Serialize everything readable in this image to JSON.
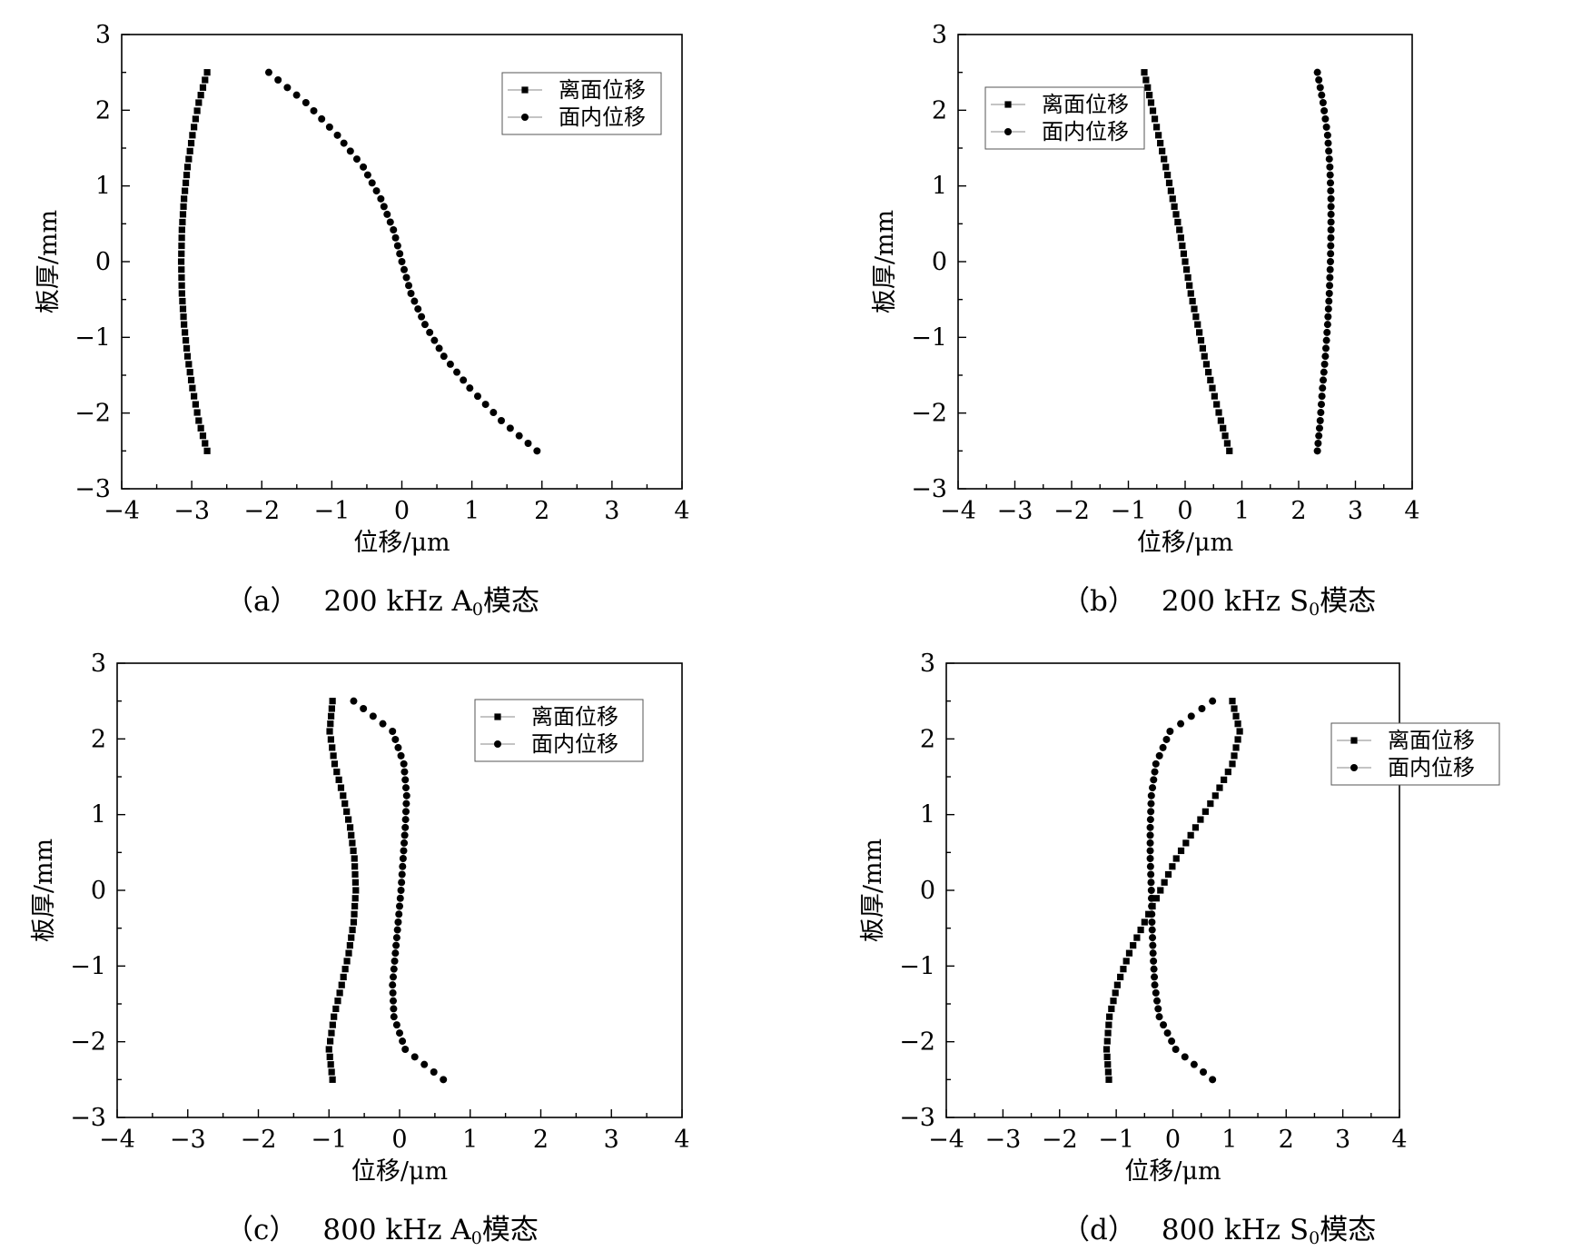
{
  "chart_data": [
    {
      "type": "scatter",
      "caption": {
        "label": "（a）",
        "text_before": "200 kHz A",
        "subscript": "0",
        "text_after": "模态"
      },
      "xlabel": "位移/μm",
      "ylabel": "板厚/mm",
      "xlim": [
        -4,
        4
      ],
      "ylim": [
        -3,
        3
      ],
      "xticks": [
        "−4",
        "−3",
        "−2",
        "−1",
        "0",
        "1",
        "2",
        "3",
        "4"
      ],
      "yticks": [
        "−3",
        "−2",
        "−1",
        "0",
        "1",
        "2",
        "3"
      ],
      "legend_position": "top-right",
      "series": [
        {
          "name": "离面位移",
          "marker": "square",
          "x": [
            -2.78,
            -2.9,
            -2.99,
            -3.06,
            -3.11,
            -3.14,
            -3.15,
            -3.14,
            -3.11,
            -3.06,
            -2.99,
            -2.9,
            -2.78
          ],
          "y": [
            2.5,
            2.1,
            1.67,
            1.25,
            0.83,
            0.42,
            0,
            -0.42,
            -0.83,
            -1.25,
            -1.67,
            -2.1,
            -2.5
          ]
        },
        {
          "name": "面内位移",
          "marker": "circle",
          "x": [
            -1.9,
            -1.37,
            -0.92,
            -0.55,
            -0.3,
            -0.12,
            0,
            0.13,
            0.33,
            0.6,
            0.97,
            1.42,
            1.93
          ],
          "y": [
            2.5,
            2.1,
            1.67,
            1.25,
            0.83,
            0.42,
            0,
            -0.42,
            -0.83,
            -1.25,
            -1.67,
            -2.1,
            -2.5
          ]
        }
      ]
    },
    {
      "type": "scatter",
      "caption": {
        "label": "（b）",
        "text_before": "200 kHz S",
        "subscript": "0",
        "text_after": "模态"
      },
      "xlabel": "位移/μm",
      "ylabel": "板厚/mm",
      "xlim": [
        -4,
        4
      ],
      "ylim": [
        -3,
        3
      ],
      "xticks": [
        "−4",
        "−3",
        "−2",
        "−1",
        "0",
        "1",
        "2",
        "3",
        "4"
      ],
      "yticks": [
        "−3",
        "−2",
        "−1",
        "0",
        "1",
        "2",
        "3"
      ],
      "legend_position": "top-left",
      "series": [
        {
          "name": "离面位移",
          "marker": "square",
          "x": [
            -0.72,
            -0.6,
            -0.47,
            -0.34,
            -0.22,
            -0.1,
            0,
            0.1,
            0.22,
            0.34,
            0.48,
            0.63,
            0.78
          ],
          "y": [
            2.5,
            2.1,
            1.67,
            1.25,
            0.83,
            0.42,
            0,
            -0.42,
            -0.83,
            -1.25,
            -1.67,
            -2.1,
            -2.5
          ]
        },
        {
          "name": "面内位移",
          "marker": "circle",
          "x": [
            2.33,
            2.43,
            2.51,
            2.55,
            2.57,
            2.57,
            2.56,
            2.54,
            2.51,
            2.47,
            2.42,
            2.38,
            2.33
          ],
          "y": [
            2.5,
            2.1,
            1.67,
            1.25,
            0.83,
            0.42,
            0,
            -0.42,
            -0.83,
            -1.25,
            -1.67,
            -2.1,
            -2.5
          ]
        }
      ]
    },
    {
      "type": "scatter",
      "caption": {
        "label": "（c）",
        "text_before": "800 kHz A",
        "subscript": "0",
        "text_after": "模态"
      },
      "xlabel": "位移/μm",
      "ylabel": "板厚/mm",
      "xlim": [
        -4,
        4
      ],
      "ylim": [
        -3,
        3
      ],
      "xticks": [
        "−4",
        "−3",
        "−2",
        "−1",
        "0",
        "1",
        "2",
        "3",
        "4"
      ],
      "yticks": [
        "−3",
        "−2",
        "−1",
        "0",
        "1",
        "2",
        "3"
      ],
      "legend_position": "top-right",
      "series": [
        {
          "name": "离面位移",
          "marker": "square",
          "x": [
            -0.95,
            -0.99,
            -0.92,
            -0.8,
            -0.7,
            -0.64,
            -0.62,
            -0.65,
            -0.72,
            -0.82,
            -0.93,
            -1.0,
            -0.95
          ],
          "y": [
            2.5,
            2.1,
            1.67,
            1.25,
            0.83,
            0.42,
            0,
            -0.42,
            -0.83,
            -1.25,
            -1.67,
            -2.1,
            -2.5
          ]
        },
        {
          "name": "面内位移",
          "marker": "circle",
          "x": [
            -0.65,
            -0.1,
            0.06,
            0.1,
            0.08,
            0.05,
            0.02,
            -0.02,
            -0.06,
            -0.1,
            -0.08,
            0.08,
            0.62
          ],
          "y": [
            2.5,
            2.1,
            1.67,
            1.25,
            0.83,
            0.42,
            0,
            -0.42,
            -0.83,
            -1.25,
            -1.67,
            -2.1,
            -2.5
          ]
        }
      ]
    },
    {
      "type": "scatter",
      "caption": {
        "label": "（d）",
        "text_before": "800 kHz S",
        "subscript": "0",
        "text_after": "模态"
      },
      "xlabel": "位移/μm",
      "ylabel": "板厚/mm",
      "xlim": [
        -4,
        4
      ],
      "ylim": [
        -3,
        3
      ],
      "xticks": [
        "−4",
        "−3",
        "−2",
        "−1",
        "0",
        "1",
        "2",
        "3",
        "4"
      ],
      "yticks": [
        "−3",
        "−2",
        "−1",
        "0",
        "1",
        "2",
        "3"
      ],
      "legend_position": "right",
      "series": [
        {
          "name": "离面位移",
          "marker": "square",
          "x": [
            1.05,
            1.18,
            1.05,
            0.75,
            0.4,
            0.06,
            -0.22,
            -0.5,
            -0.77,
            -0.98,
            -1.12,
            -1.17,
            -1.13
          ],
          "y": [
            2.5,
            2.1,
            1.67,
            1.25,
            0.83,
            0.42,
            0,
            -0.42,
            -0.83,
            -1.25,
            -1.67,
            -2.1,
            -2.5
          ]
        },
        {
          "name": "面内位移",
          "marker": "circle",
          "x": [
            0.7,
            -0.05,
            -0.3,
            -0.38,
            -0.4,
            -0.4,
            -0.38,
            -0.37,
            -0.35,
            -0.32,
            -0.24,
            0.05,
            0.7
          ],
          "y": [
            2.5,
            2.1,
            1.67,
            1.25,
            0.83,
            0.42,
            0,
            -0.42,
            -0.83,
            -1.25,
            -1.67,
            -2.1,
            -2.5
          ]
        }
      ]
    }
  ]
}
